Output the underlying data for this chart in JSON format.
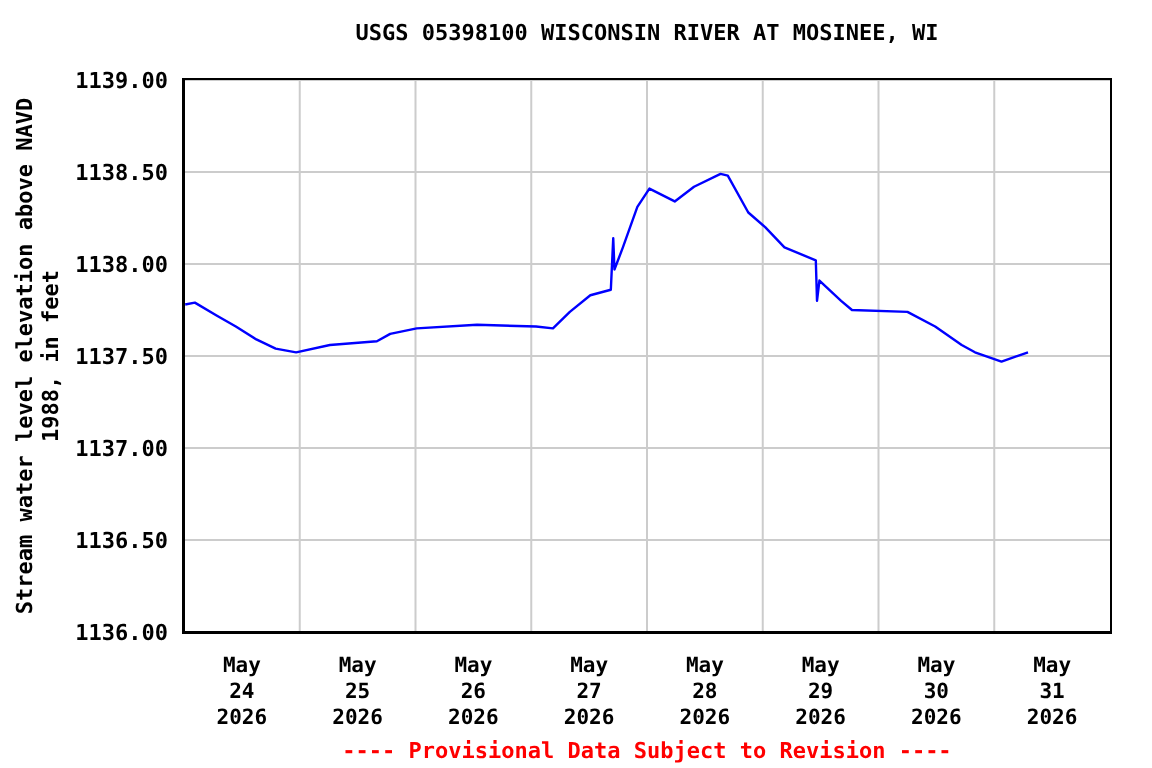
{
  "chart_data": {
    "type": "line",
    "title": "USGS 05398100 WISCONSIN RIVER AT MOSINEE, WI",
    "ylabel": "Stream water level elevation above NAVD 1988, in feet",
    "annotations": [
      "---- Provisional Data Subject to Revision ----"
    ],
    "x": [
      "2026-05-24T00:15",
      "2026-05-24T02:15",
      "2026-05-24T06:45",
      "2026-05-24T10:45",
      "2026-05-24T15:00",
      "2026-05-24T19:00",
      "2026-05-24T23:15",
      "2026-05-25T06:15",
      "2026-05-25T16:00",
      "2026-05-25T18:45",
      "2026-05-26T00:15",
      "2026-05-26T12:45",
      "2026-05-27T01:00",
      "2026-05-27T04:30",
      "2026-05-27T08:00",
      "2026-05-27T12:15",
      "2026-05-27T16:30",
      "2026-05-27T17:00",
      "2026-05-27T17:15",
      "2026-05-27T19:00",
      "2026-05-27T22:00",
      "2026-05-28T00:30",
      "2026-05-28T05:45",
      "2026-05-28T09:45",
      "2026-05-28T15:15",
      "2026-05-28T16:45",
      "2026-05-28T21:00",
      "2026-05-29T00:30",
      "2026-05-29T04:30",
      "2026-05-29T11:00",
      "2026-05-29T11:15",
      "2026-05-29T11:45",
      "2026-05-29T16:15",
      "2026-05-29T18:30",
      "2026-05-30T06:00",
      "2026-05-30T11:45",
      "2026-05-30T17:15",
      "2026-05-30T20:00",
      "2026-05-31T01:30",
      "2026-05-31T07:00"
    ],
    "series": [
      {
        "color": "#0000ff",
        "values": [
          1137.78,
          1137.79,
          1137.72,
          1137.66,
          1137.59,
          1137.54,
          1137.52,
          1137.56,
          1137.58,
          1137.62,
          1137.65,
          1137.67,
          1137.66,
          1137.65,
          1137.74,
          1137.83,
          1137.86,
          1138.14,
          1137.97,
          1138.09,
          1138.31,
          1138.41,
          1138.34,
          1138.42,
          1138.49,
          1138.48,
          1138.28,
          1138.2,
          1138.09,
          1138.02,
          1137.8,
          1137.91,
          1137.8,
          1137.75,
          1137.74,
          1137.66,
          1137.56,
          1137.52,
          1137.47,
          1137.52
        ]
      }
    ],
    "xlim": [
      "2026-05-24",
      "2026-06-01"
    ],
    "xticks": [
      {
        "value": "2026-05-24T12:00",
        "label": "May\n24\n2026"
      },
      {
        "value": "2026-05-25T12:00",
        "label": "May\n25\n2026"
      },
      {
        "value": "2026-05-26T12:00",
        "label": "May\n26\n2026"
      },
      {
        "value": "2026-05-27T12:00",
        "label": "May\n27\n2026"
      },
      {
        "value": "2026-05-28T12:00",
        "label": "May\n28\n2026"
      },
      {
        "value": "2026-05-29T12:00",
        "label": "May\n29\n2026"
      },
      {
        "value": "2026-05-30T12:00",
        "label": "May\n30\n2026"
      },
      {
        "value": "2026-05-31T12:00",
        "label": "May\n31\n2026"
      },
      {
        "value": "2026-05-25",
        "label": null
      },
      {
        "value": "2026-05-26",
        "label": null
      },
      {
        "value": "2026-05-27",
        "label": null
      },
      {
        "value": "2026-05-28",
        "label": null
      },
      {
        "value": "2026-05-29",
        "label": null
      },
      {
        "value": "2026-05-30",
        "label": null
      },
      {
        "value": "2026-05-31",
        "label": null
      }
    ],
    "ylim": [
      1136,
      1139
    ],
    "yticks": [
      {
        "value": 1136,
        "label": "1136.00"
      },
      {
        "value": 1136.5,
        "label": "1136.50"
      },
      {
        "value": 1137,
        "label": "1137.00"
      },
      {
        "value": 1137.5,
        "label": "1137.50"
      },
      {
        "value": 1138,
        "label": "1138.00"
      },
      {
        "value": 1138.5,
        "label": "1138.50"
      },
      {
        "value": 1139,
        "label": "1139.00"
      }
    ],
    "grid": true,
    "marker": "none",
    "line_style": "solid"
  }
}
